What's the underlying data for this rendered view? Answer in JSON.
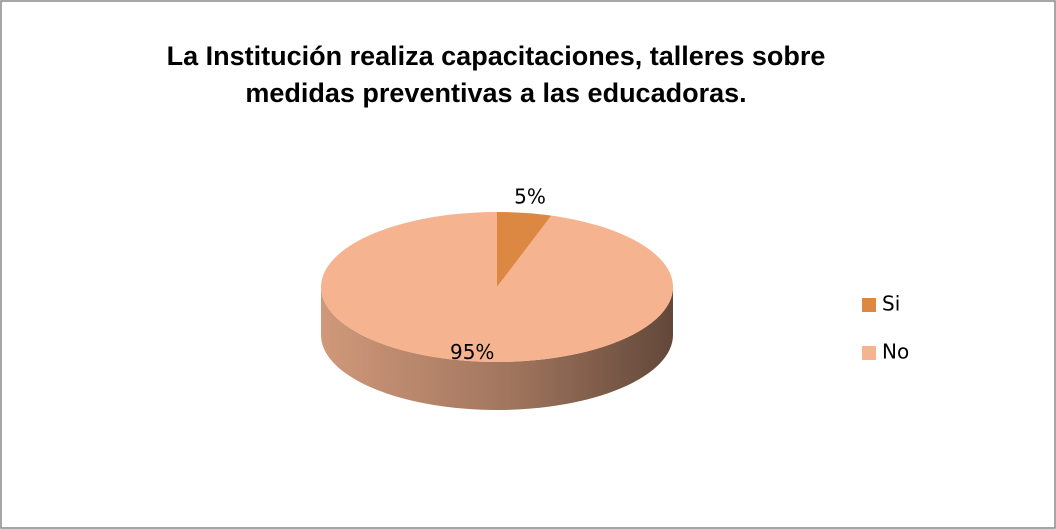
{
  "chart_data": {
    "type": "pie",
    "title": "La Institución realiza capacitaciones, talleres sobre medidas preventivas a las educadoras.",
    "categories": [
      "Si",
      "No"
    ],
    "values": [
      5,
      95
    ],
    "value_labels": [
      "5%",
      "95%"
    ],
    "colors": [
      "#dc8742",
      "#f5b38f"
    ],
    "legend": "right"
  }
}
